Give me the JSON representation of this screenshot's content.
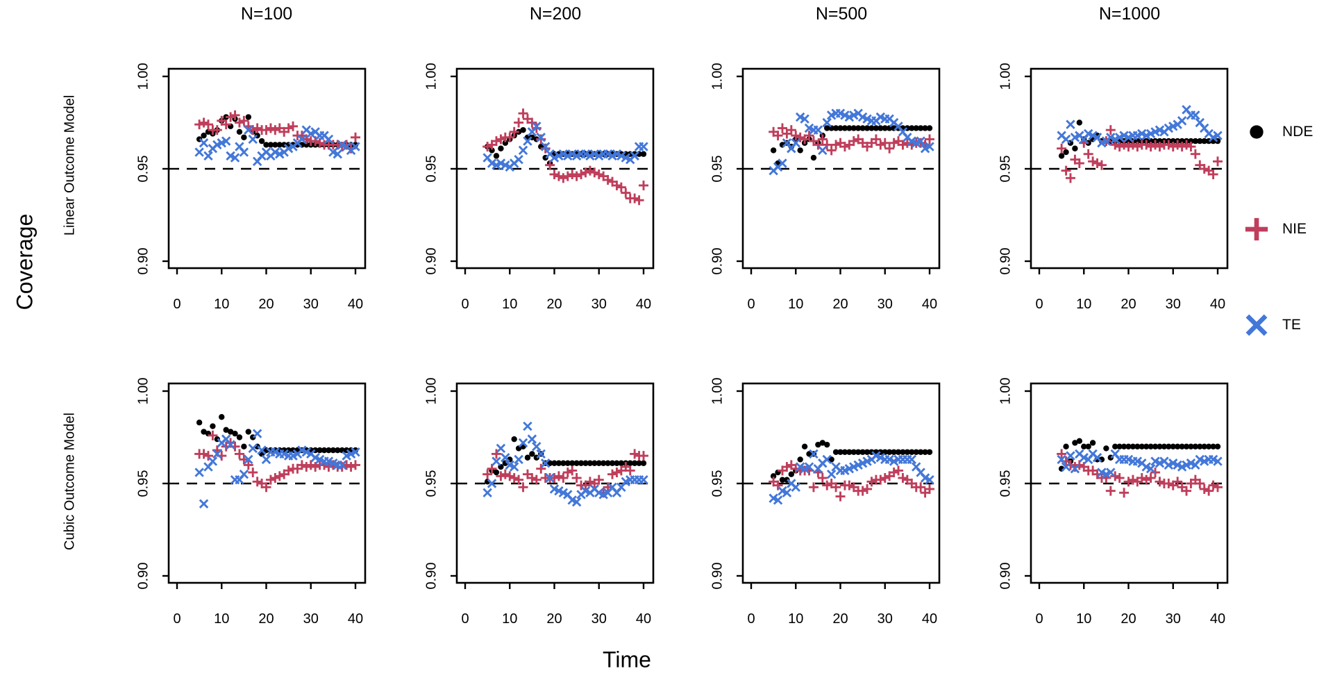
{
  "labels": {
    "y": "Coverage",
    "x": "Time"
  },
  "columns": [
    "N=100",
    "N=200",
    "N=500",
    "N=1000"
  ],
  "rows": [
    "Linear Outcome Model",
    "Cubic Outcome Model"
  ],
  "legend": [
    {
      "label": "NDE",
      "symbol": "circle",
      "color": "#000000"
    },
    {
      "label": "NIE",
      "symbol": "plus",
      "color": "#BF3E5B"
    },
    {
      "label": "TE",
      "symbol": "x",
      "color": "#4377D9"
    }
  ],
  "axes": {
    "x_ticks": [
      0,
      10,
      20,
      30,
      40
    ],
    "y_ticks": [
      "1.00",
      "0.95",
      "0.90"
    ],
    "y_tick_values": [
      1.0,
      0.95,
      0.9
    ],
    "xlim": [
      0,
      40
    ],
    "ylim": [
      0.896,
      1.004
    ],
    "reference_line": 0.95,
    "reference_style": "dashed"
  },
  "chart_data": {
    "type": "scatter",
    "x_label": "Time",
    "y_label": "Coverage",
    "x": [
      5,
      6,
      7,
      8,
      9,
      10,
      11,
      12,
      13,
      14,
      15,
      16,
      17,
      18,
      19,
      20,
      21,
      22,
      23,
      24,
      25,
      26,
      27,
      28,
      29,
      30,
      31,
      32,
      33,
      34,
      35,
      36,
      37,
      38,
      39,
      40
    ],
    "reference_line": 0.95,
    "panels": [
      {
        "row": "Linear Outcome Model",
        "col": "N=100",
        "series": {
          "NDE": [
            0.966,
            0.968,
            0.97,
            0.969,
            0.971,
            0.976,
            0.978,
            0.973,
            0.977,
            0.97,
            0.967,
            0.978,
            0.97,
            0.968,
            0.965,
            0.963,
            0.963,
            0.963,
            0.963,
            0.963,
            0.963,
            0.963,
            0.963,
            0.963,
            0.963,
            0.963,
            0.963,
            0.963,
            0.963,
            0.963,
            0.963,
            0.963,
            0.963,
            0.963,
            0.963,
            0.963
          ],
          "NIE": [
            0.974,
            0.975,
            0.974,
            0.971,
            0.971,
            0.976,
            0.974,
            0.978,
            0.979,
            0.975,
            0.976,
            0.973,
            0.971,
            0.972,
            0.971,
            0.971,
            0.972,
            0.971,
            0.972,
            0.97,
            0.972,
            0.973,
            0.968,
            0.968,
            0.966,
            0.965,
            0.965,
            0.964,
            0.963,
            0.963,
            0.963,
            0.963,
            0.962,
            0.963,
            0.961,
            0.967
          ],
          "TE": [
            0.959,
            0.964,
            0.957,
            0.961,
            0.963,
            0.964,
            0.965,
            0.957,
            0.956,
            0.962,
            0.959,
            0.971,
            0.966,
            0.954,
            0.957,
            0.959,
            0.957,
            0.959,
            0.958,
            0.959,
            0.961,
            0.962,
            0.964,
            0.966,
            0.971,
            0.969,
            0.97,
            0.968,
            0.968,
            0.966,
            0.959,
            0.958,
            0.963,
            0.962,
            0.96,
            0.962
          ]
        }
      },
      {
        "row": "Linear Outcome Model",
        "col": "N=200",
        "series": {
          "NDE": [
            0.962,
            0.96,
            0.957,
            0.961,
            0.964,
            0.966,
            0.968,
            0.97,
            0.971,
            0.967,
            0.967,
            0.966,
            0.962,
            0.956,
            0.953,
            0.958,
            0.958,
            0.958,
            0.958,
            0.958,
            0.958,
            0.958,
            0.958,
            0.958,
            0.958,
            0.958,
            0.958,
            0.958,
            0.958,
            0.958,
            0.958,
            0.958,
            0.958,
            0.958,
            0.958,
            0.958
          ],
          "NIE": [
            0.962,
            0.963,
            0.965,
            0.966,
            0.967,
            0.967,
            0.97,
            0.975,
            0.98,
            0.977,
            0.975,
            0.972,
            0.966,
            0.961,
            0.952,
            0.947,
            0.946,
            0.945,
            0.946,
            0.947,
            0.946,
            0.947,
            0.948,
            0.949,
            0.948,
            0.947,
            0.946,
            0.944,
            0.943,
            0.941,
            0.94,
            0.937,
            0.934,
            0.934,
            0.933,
            0.941
          ],
          "TE": [
            0.956,
            0.953,
            0.952,
            0.953,
            0.952,
            0.951,
            0.953,
            0.955,
            0.96,
            0.965,
            0.97,
            0.973,
            0.967,
            0.962,
            0.958,
            0.956,
            0.957,
            0.958,
            0.957,
            0.958,
            0.957,
            0.958,
            0.958,
            0.957,
            0.958,
            0.957,
            0.958,
            0.958,
            0.957,
            0.958,
            0.957,
            0.956,
            0.955,
            0.957,
            0.962,
            0.962
          ]
        }
      },
      {
        "row": "Linear Outcome Model",
        "col": "N=500",
        "series": {
          "NDE": [
            0.96,
            0.953,
            0.963,
            0.964,
            0.962,
            0.966,
            0.96,
            0.964,
            0.966,
            0.956,
            0.964,
            0.968,
            0.972,
            0.972,
            0.972,
            0.972,
            0.972,
            0.972,
            0.972,
            0.972,
            0.972,
            0.972,
            0.972,
            0.972,
            0.972,
            0.972,
            0.972,
            0.972,
            0.972,
            0.972,
            0.972,
            0.972,
            0.972,
            0.972,
            0.972,
            0.972
          ],
          "NIE": [
            0.97,
            0.968,
            0.972,
            0.969,
            0.971,
            0.968,
            0.967,
            0.966,
            0.968,
            0.965,
            0.963,
            0.966,
            0.963,
            0.96,
            0.963,
            0.964,
            0.962,
            0.963,
            0.965,
            0.966,
            0.964,
            0.962,
            0.964,
            0.966,
            0.963,
            0.964,
            0.961,
            0.964,
            0.965,
            0.963,
            0.964,
            0.963,
            0.964,
            0.964,
            0.963,
            0.966
          ],
          "TE": [
            0.949,
            0.951,
            0.953,
            0.964,
            0.961,
            0.964,
            0.978,
            0.977,
            0.972,
            0.971,
            0.971,
            0.96,
            0.975,
            0.979,
            0.98,
            0.98,
            0.979,
            0.978,
            0.979,
            0.98,
            0.978,
            0.977,
            0.976,
            0.976,
            0.978,
            0.977,
            0.977,
            0.975,
            0.973,
            0.97,
            0.967,
            0.965,
            0.964,
            0.965,
            0.961,
            0.962
          ]
        }
      },
      {
        "row": "Linear Outcome Model",
        "col": "N=1000",
        "series": {
          "NDE": [
            0.957,
            0.959,
            0.964,
            0.961,
            0.975,
            0.966,
            0.964,
            0.966,
            0.968,
            0.965,
            0.965,
            0.965,
            0.965,
            0.965,
            0.965,
            0.965,
            0.965,
            0.965,
            0.965,
            0.965,
            0.965,
            0.965,
            0.965,
            0.965,
            0.965,
            0.965,
            0.965,
            0.965,
            0.965,
            0.965,
            0.965,
            0.965,
            0.965,
            0.965,
            0.965,
            0.965
          ],
          "NIE": [
            0.961,
            0.949,
            0.945,
            0.955,
            0.953,
            0.964,
            0.958,
            0.954,
            0.953,
            0.952,
            0.965,
            0.971,
            0.963,
            0.962,
            0.963,
            0.962,
            0.963,
            0.962,
            0.963,
            0.963,
            0.962,
            0.963,
            0.962,
            0.963,
            0.963,
            0.962,
            0.963,
            0.962,
            0.963,
            0.962,
            0.958,
            0.952,
            0.95,
            0.949,
            0.947,
            0.954
          ],
          "TE": [
            0.968,
            0.966,
            0.974,
            0.967,
            0.968,
            0.966,
            0.969,
            0.968,
            0.967,
            0.964,
            0.965,
            0.967,
            0.966,
            0.967,
            0.968,
            0.967,
            0.968,
            0.968,
            0.969,
            0.968,
            0.969,
            0.97,
            0.971,
            0.97,
            0.972,
            0.973,
            0.974,
            0.976,
            0.982,
            0.979,
            0.979,
            0.975,
            0.972,
            0.969,
            0.967,
            0.968
          ]
        }
      },
      {
        "row": "Cubic Outcome Model",
        "col": "N=100",
        "series": {
          "NDE": [
            0.983,
            0.978,
            0.977,
            0.981,
            0.974,
            0.986,
            0.979,
            0.978,
            0.977,
            0.975,
            0.97,
            0.978,
            0.975,
            0.97,
            0.966,
            0.968,
            0.968,
            0.968,
            0.968,
            0.968,
            0.968,
            0.968,
            0.968,
            0.968,
            0.968,
            0.968,
            0.968,
            0.968,
            0.968,
            0.968,
            0.968,
            0.968,
            0.968,
            0.968,
            0.968,
            0.968
          ],
          "NIE": [
            0.966,
            0.966,
            0.965,
            0.976,
            0.968,
            0.965,
            0.97,
            0.972,
            0.97,
            0.966,
            0.963,
            0.96,
            0.956,
            0.951,
            0.95,
            0.948,
            0.952,
            0.953,
            0.954,
            0.955,
            0.957,
            0.958,
            0.958,
            0.96,
            0.959,
            0.96,
            0.959,
            0.96,
            0.96,
            0.959,
            0.96,
            0.959,
            0.959,
            0.96,
            0.959,
            0.96
          ],
          "TE": [
            0.956,
            0.939,
            0.959,
            0.962,
            0.966,
            0.972,
            0.974,
            0.971,
            0.952,
            0.952,
            0.955,
            0.963,
            0.969,
            0.977,
            0.968,
            0.963,
            0.967,
            0.967,
            0.966,
            0.966,
            0.965,
            0.965,
            0.966,
            0.968,
            0.967,
            0.966,
            0.964,
            0.963,
            0.962,
            0.962,
            0.961,
            0.96,
            0.96,
            0.965,
            0.966,
            0.967
          ]
        }
      },
      {
        "row": "Cubic Outcome Model",
        "col": "N=200",
        "series": {
          "NDE": [
            0.951,
            0.957,
            0.956,
            0.959,
            0.961,
            0.963,
            0.974,
            0.969,
            0.97,
            0.964,
            0.966,
            0.964,
            0.966,
            0.961,
            0.961,
            0.961,
            0.961,
            0.961,
            0.961,
            0.961,
            0.961,
            0.961,
            0.961,
            0.961,
            0.961,
            0.961,
            0.961,
            0.961,
            0.961,
            0.961,
            0.961,
            0.961,
            0.961,
            0.961,
            0.961,
            0.961
          ],
          "NIE": [
            0.955,
            0.958,
            0.966,
            0.954,
            0.955,
            0.954,
            0.953,
            0.952,
            0.948,
            0.955,
            0.953,
            0.952,
            0.958,
            0.953,
            0.953,
            0.953,
            0.954,
            0.953,
            0.956,
            0.957,
            0.953,
            0.949,
            0.949,
            0.951,
            0.95,
            0.952,
            0.945,
            0.948,
            0.955,
            0.956,
            0.957,
            0.959,
            0.957,
            0.966,
            0.965,
            0.965
          ],
          "TE": [
            0.945,
            0.95,
            0.962,
            0.969,
            0.964,
            0.96,
            0.959,
            0.963,
            0.972,
            0.981,
            0.974,
            0.97,
            0.966,
            0.961,
            0.953,
            0.947,
            0.946,
            0.945,
            0.944,
            0.941,
            0.94,
            0.944,
            0.946,
            0.945,
            0.947,
            0.945,
            0.944,
            0.945,
            0.948,
            0.945,
            0.948,
            0.951,
            0.952,
            0.952,
            0.952,
            0.952
          ]
        }
      },
      {
        "row": "Cubic Outcome Model",
        "col": "N=500",
        "series": {
          "NDE": [
            0.954,
            0.956,
            0.952,
            0.952,
            0.955,
            0.957,
            0.963,
            0.97,
            0.966,
            0.966,
            0.971,
            0.972,
            0.971,
            0.963,
            0.967,
            0.967,
            0.967,
            0.967,
            0.967,
            0.967,
            0.967,
            0.967,
            0.967,
            0.967,
            0.967,
            0.967,
            0.967,
            0.967,
            0.967,
            0.967,
            0.967,
            0.967,
            0.967,
            0.967,
            0.967,
            0.967
          ],
          "NIE": [
            0.951,
            0.949,
            0.957,
            0.959,
            0.96,
            0.958,
            0.957,
            0.957,
            0.957,
            0.948,
            0.956,
            0.953,
            0.949,
            0.95,
            0.948,
            0.943,
            0.949,
            0.949,
            0.948,
            0.946,
            0.946,
            0.947,
            0.951,
            0.952,
            0.952,
            0.953,
            0.954,
            0.956,
            0.957,
            0.953,
            0.952,
            0.95,
            0.948,
            0.948,
            0.945,
            0.947
          ],
          "TE": [
            0.942,
            0.941,
            0.946,
            0.945,
            0.95,
            0.948,
            0.959,
            0.958,
            0.959,
            0.966,
            0.958,
            0.961,
            0.963,
            0.955,
            0.959,
            0.957,
            0.957,
            0.958,
            0.959,
            0.96,
            0.961,
            0.962,
            0.963,
            0.965,
            0.964,
            0.963,
            0.963,
            0.962,
            0.963,
            0.963,
            0.963,
            0.963,
            0.959,
            0.956,
            0.953,
            0.952
          ]
        }
      },
      {
        "row": "Cubic Outcome Model",
        "col": "N=1000",
        "series": {
          "NDE": [
            0.958,
            0.97,
            0.962,
            0.972,
            0.973,
            0.97,
            0.97,
            0.972,
            0.963,
            0.963,
            0.969,
            0.964,
            0.97,
            0.97,
            0.97,
            0.97,
            0.97,
            0.97,
            0.97,
            0.97,
            0.97,
            0.97,
            0.97,
            0.97,
            0.97,
            0.97,
            0.97,
            0.97,
            0.97,
            0.97,
            0.97,
            0.97,
            0.97,
            0.97,
            0.97,
            0.97
          ],
          "NIE": [
            0.966,
            0.962,
            0.96,
            0.959,
            0.96,
            0.959,
            0.957,
            0.957,
            0.955,
            0.953,
            0.953,
            0.946,
            0.954,
            0.953,
            0.945,
            0.951,
            0.952,
            0.951,
            0.953,
            0.952,
            0.953,
            0.956,
            0.951,
            0.95,
            0.95,
            0.949,
            0.951,
            0.948,
            0.946,
            0.95,
            0.952,
            0.95,
            0.947,
            0.946,
            0.949,
            0.948
          ],
          "TE": [
            0.963,
            0.959,
            0.965,
            0.958,
            0.966,
            0.964,
            0.963,
            0.966,
            0.964,
            0.956,
            0.955,
            0.956,
            0.966,
            0.963,
            0.963,
            0.963,
            0.962,
            0.962,
            0.961,
            0.959,
            0.958,
            0.962,
            0.961,
            0.962,
            0.96,
            0.961,
            0.96,
            0.959,
            0.96,
            0.961,
            0.96,
            0.963,
            0.962,
            0.963,
            0.963,
            0.962
          ]
        }
      }
    ]
  }
}
